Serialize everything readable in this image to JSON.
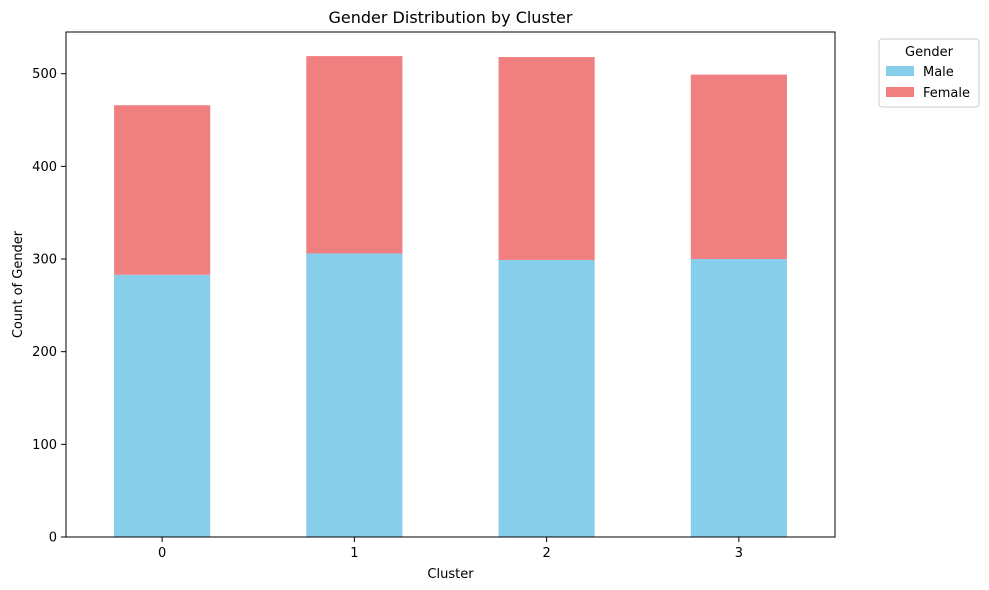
{
  "chart_data": {
    "type": "bar",
    "stacked": true,
    "title": "Gender Distribution by Cluster",
    "xlabel": "Cluster",
    "ylabel": "Count of Gender",
    "categories": [
      "0",
      "1",
      "2",
      "3"
    ],
    "series": [
      {
        "name": "Male",
        "color": "#87ceeb",
        "values": [
          283,
          306,
          299,
          300
        ]
      },
      {
        "name": "Female",
        "color": "#f08080",
        "values": [
          183,
          213,
          219,
          199
        ]
      }
    ],
    "ylim": [
      0,
      545
    ],
    "yticks": [
      0,
      100,
      200,
      300,
      400,
      500
    ],
    "legend": {
      "title": "Gender",
      "placement": "outside-top-right"
    },
    "grid": false
  }
}
